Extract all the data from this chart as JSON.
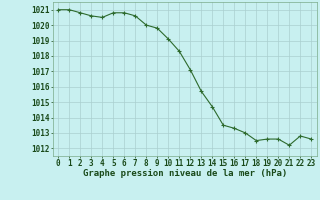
{
  "x": [
    0,
    1,
    2,
    3,
    4,
    5,
    6,
    7,
    8,
    9,
    10,
    11,
    12,
    13,
    14,
    15,
    16,
    17,
    18,
    19,
    20,
    21,
    22,
    23
  ],
  "y": [
    1021.0,
    1021.0,
    1020.8,
    1020.6,
    1020.5,
    1020.8,
    1020.8,
    1020.6,
    1020.0,
    1019.8,
    1019.1,
    1018.3,
    1017.1,
    1015.7,
    1014.7,
    1013.5,
    1013.3,
    1013.0,
    1012.5,
    1012.6,
    1012.6,
    1012.2,
    1012.8,
    1012.6
  ],
  "ylim": [
    1011.5,
    1021.5
  ],
  "yticks": [
    1012,
    1013,
    1014,
    1015,
    1016,
    1017,
    1018,
    1019,
    1020,
    1021
  ],
  "xticks": [
    0,
    1,
    2,
    3,
    4,
    5,
    6,
    7,
    8,
    9,
    10,
    11,
    12,
    13,
    14,
    15,
    16,
    17,
    18,
    19,
    20,
    21,
    22,
    23
  ],
  "xlabel": "Graphe pression niveau de la mer (hPa)",
  "line_color": "#2d6a2d",
  "marker": "+",
  "marker_color": "#2d6a2d",
  "bg_color": "#c8f0f0",
  "grid_color": "#aacfcf",
  "tick_label_color": "#1a4a1a",
  "xlabel_color": "#1a4a1a",
  "xlabel_fontsize": 6.5,
  "tick_fontsize": 5.5
}
